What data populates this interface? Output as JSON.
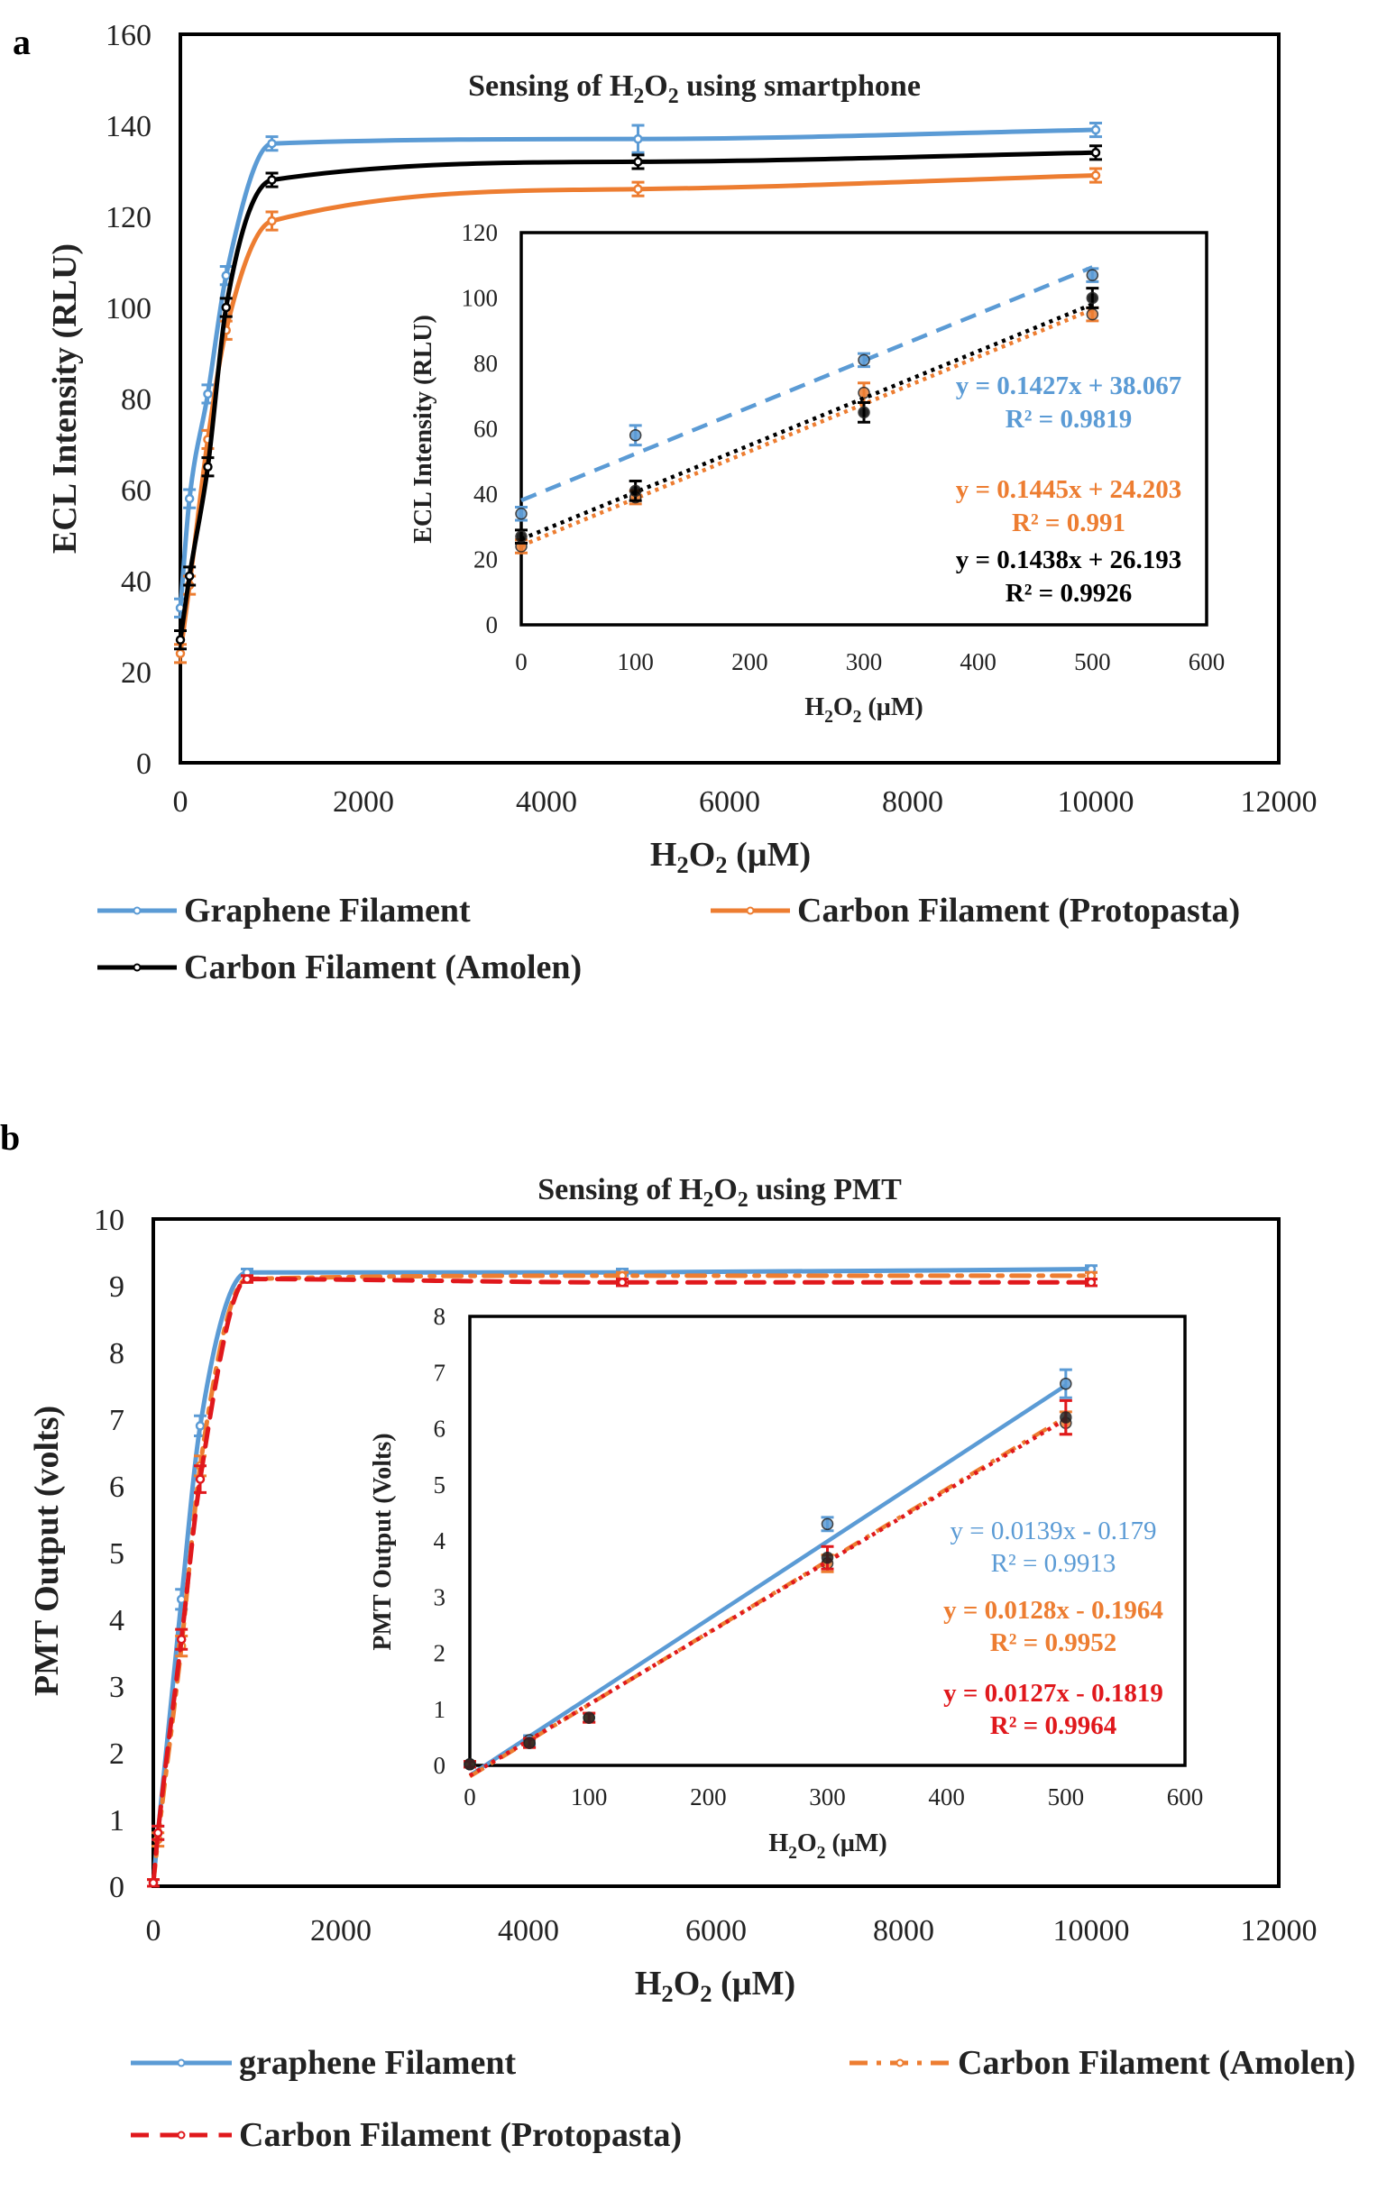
{
  "chart_data": [
    {
      "panel": "a",
      "type": "line",
      "title_parts": [
        "Sensing of H",
        "2",
        "O",
        "2",
        " using smartphone"
      ],
      "xlabel_parts": [
        "H",
        "2",
        "O",
        "2",
        " (µM)"
      ],
      "ylabel": "ECL Intensity (RLU)",
      "xlim": [
        0,
        12000
      ],
      "ylim": [
        0,
        160
      ],
      "x_ticks": [
        "0",
        "2000",
        "4000",
        "6000",
        "8000",
        "10000",
        "12000"
      ],
      "y_ticks": [
        "0",
        "20",
        "40",
        "60",
        "80",
        "100",
        "120",
        "140",
        "160"
      ],
      "series": [
        {
          "name": "Graphene Filament",
          "color": "#5b9bd5",
          "dash": "solid",
          "x": [
            0,
            100,
            300,
            500,
            1000,
            5000,
            10000
          ],
          "y": [
            34,
            58,
            81,
            107,
            136,
            137,
            139
          ],
          "err": [
            2,
            2,
            2,
            2,
            1.5,
            3,
            1.5
          ]
        },
        {
          "name": "Carbon Filament (Protopasta)",
          "color": "#ed7d31",
          "dash": "solid",
          "x": [
            0,
            100,
            300,
            500,
            1000,
            5000,
            10000
          ],
          "y": [
            24,
            39,
            71,
            95,
            119,
            126,
            129
          ],
          "err": [
            2,
            2,
            2,
            2,
            2,
            1.5,
            1.5
          ]
        },
        {
          "name": "Carbon Filament (Amolen)",
          "color": "#000000",
          "dash": "solid",
          "x": [
            0,
            100,
            300,
            500,
            1000,
            5000,
            10000
          ],
          "y": [
            27,
            41,
            65,
            100,
            128,
            132,
            134
          ],
          "err": [
            2,
            2,
            2,
            2,
            1.5,
            1.5,
            1.5
          ]
        }
      ],
      "inset": {
        "xlabel_parts": [
          "H",
          "2",
          "O",
          "2",
          " (µM)"
        ],
        "ylabel": "ECL Intensity (RLU)",
        "xlim": [
          0,
          600
        ],
        "ylim": [
          0,
          120
        ],
        "x_ticks": [
          "0",
          "100",
          "200",
          "300",
          "400",
          "500",
          "600"
        ],
        "y_ticks": [
          "0",
          "20",
          "40",
          "60",
          "80",
          "100",
          "120"
        ],
        "series": [
          {
            "name": "Graphene Filament",
            "color": "#5b9bd5",
            "trend_dash": "dashed",
            "x": [
              0,
              100,
              300,
              500
            ],
            "y": [
              34,
              58,
              81,
              107
            ],
            "err": [
              2,
              3,
              2,
              2
            ],
            "slope": 0.1427,
            "intercept": 38.067
          },
          {
            "name": "Carbon Filament (Protopasta)",
            "color": "#ed7d31",
            "trend_dash": "dotted",
            "x": [
              0,
              100,
              300,
              500
            ],
            "y": [
              24,
              39,
              71,
              95
            ],
            "err": [
              2,
              2,
              3,
              2
            ],
            "slope": 0.1445,
            "intercept": 24.203
          },
          {
            "name": "Carbon Filament (Amolen)",
            "color": "#000000",
            "trend_dash": "dotted",
            "x": [
              0,
              100,
              300,
              500
            ],
            "y": [
              27,
              41,
              65,
              100
            ],
            "err": [
              2,
              3,
              3,
              3
            ],
            "slope": 0.1438,
            "intercept": 26.193
          }
        ],
        "equations": [
          {
            "eq": "y = 0.1427x + 38.067",
            "r2": "R² = 0.9819",
            "color": "#5b9bd5"
          },
          {
            "eq": "y = 0.1445x + 24.203",
            "r2": "R² = 0.991",
            "color": "#ed7d31"
          },
          {
            "eq": "y = 0.1438x + 26.193",
            "r2": "R² = 0.9926",
            "color": "#000000"
          }
        ]
      },
      "legend": [
        {
          "label": "Graphene Filament",
          "color": "#5b9bd5",
          "dash": "solid"
        },
        {
          "label": "Carbon Filament (Protopasta)",
          "color": "#ed7d31",
          "dash": "solid"
        },
        {
          "label": "Carbon Filament (Amolen)",
          "color": "#000000",
          "dash": "solid"
        }
      ]
    },
    {
      "panel": "b",
      "type": "line",
      "title_parts": [
        "Sensing of H",
        "2",
        "O",
        "2",
        " using PMT"
      ],
      "xlabel_parts": [
        "H",
        "2",
        "O",
        "2",
        " (µM)"
      ],
      "ylabel": "PMT Output (volts)",
      "xlim": [
        0,
        12000
      ],
      "ylim": [
        0,
        10
      ],
      "x_ticks": [
        "0",
        "2000",
        "4000",
        "6000",
        "8000",
        "10000",
        "12000"
      ],
      "y_ticks": [
        "0",
        "1",
        "2",
        "3",
        "4",
        "5",
        "6",
        "7",
        "8",
        "9",
        "10"
      ],
      "series": [
        {
          "name": "graphene Filament",
          "color": "#5b9bd5",
          "dash": "solid",
          "x": [
            0,
            50,
            300,
            500,
            1000,
            5000,
            10000
          ],
          "y": [
            0.05,
            0.8,
            4.3,
            6.9,
            9.2,
            9.2,
            9.25
          ],
          "err": [
            0.05,
            0.1,
            0.15,
            0.15,
            0.05,
            0.05,
            0.05
          ]
        },
        {
          "name": "Carbon Filament (Amolen)",
          "color": "#ed7d31",
          "dash": "dashdot",
          "x": [
            0,
            50,
            300,
            500,
            1000,
            5000,
            10000
          ],
          "y": [
            0.05,
            0.7,
            3.6,
            6.3,
            9.1,
            9.15,
            9.15
          ],
          "err": [
            0.05,
            0.1,
            0.15,
            0.15,
            0.05,
            0.05,
            0.05
          ]
        },
        {
          "name": "Carbon Filament (Protopasta)",
          "color": "#e0181c",
          "dash": "dashed",
          "x": [
            0,
            50,
            300,
            500,
            1000,
            5000,
            10000
          ],
          "y": [
            0.05,
            0.8,
            3.7,
            6.1,
            9.1,
            9.05,
            9.05
          ],
          "err": [
            0.05,
            0.1,
            0.15,
            0.2,
            0.05,
            0.05,
            0.05
          ]
        }
      ],
      "inset": {
        "xlabel_parts": [
          "H",
          "2",
          "O",
          "2",
          " (µM)"
        ],
        "ylabel": "PMT Output (Volts)",
        "xlim": [
          0,
          600
        ],
        "ylim": [
          0,
          8
        ],
        "x_ticks": [
          "0",
          "100",
          "200",
          "300",
          "400",
          "500",
          "600"
        ],
        "y_ticks": [
          "0",
          "1",
          "2",
          "3",
          "4",
          "5",
          "6",
          "7",
          "8"
        ],
        "series": [
          {
            "name": "graphene Filament",
            "color": "#5b9bd5",
            "trend_dash": "solid",
            "x": [
              0,
              50,
              300,
              500
            ],
            "y": [
              0.02,
              0.45,
              4.3,
              6.8
            ],
            "err": [
              0.05,
              0.08,
              0.12,
              0.25
            ],
            "slope": 0.0139,
            "intercept": -0.179
          },
          {
            "name": "Carbon Filament (Amolen)",
            "color": "#ed7d31",
            "trend_dash": "dashdot",
            "x": [
              0,
              50,
              100,
              300,
              500
            ],
            "y": [
              0.02,
              0.4,
              0.85,
              3.6,
              6.1
            ],
            "err": [
              0.05,
              0.08,
              0.08,
              0.15,
              0.2
            ],
            "slope": 0.0128,
            "intercept": -0.1964
          },
          {
            "name": "Carbon Filament (Protopasta)",
            "color": "#e0181c",
            "trend_dash": "dotted",
            "x": [
              0,
              50,
              100,
              300,
              500
            ],
            "y": [
              0.02,
              0.4,
              0.85,
              3.7,
              6.2
            ],
            "err": [
              0.05,
              0.08,
              0.08,
              0.2,
              0.3
            ],
            "slope": 0.0127,
            "intercept": -0.1819
          }
        ],
        "equations": [
          {
            "eq": "y = 0.0139x - 0.179",
            "r2": "R² = 0.9913",
            "color": "#5b9bd5",
            "weight": "normal"
          },
          {
            "eq": "y = 0.0128x - 0.1964",
            "r2": "R² = 0.9952",
            "color": "#ed7d31",
            "weight": "bold"
          },
          {
            "eq": "y = 0.0127x - 0.1819",
            "r2": "R² = 0.9964",
            "color": "#e0181c",
            "weight": "bold"
          }
        ]
      },
      "legend": [
        {
          "label": "graphene Filament",
          "color": "#5b9bd5",
          "dash": "solid"
        },
        {
          "label": "Carbon Filament (Amolen)",
          "color": "#ed7d31",
          "dash": "dashdot"
        },
        {
          "label": "Carbon Filament (Protopasta)",
          "color": "#e0181c",
          "dash": "dashed"
        }
      ]
    }
  ]
}
